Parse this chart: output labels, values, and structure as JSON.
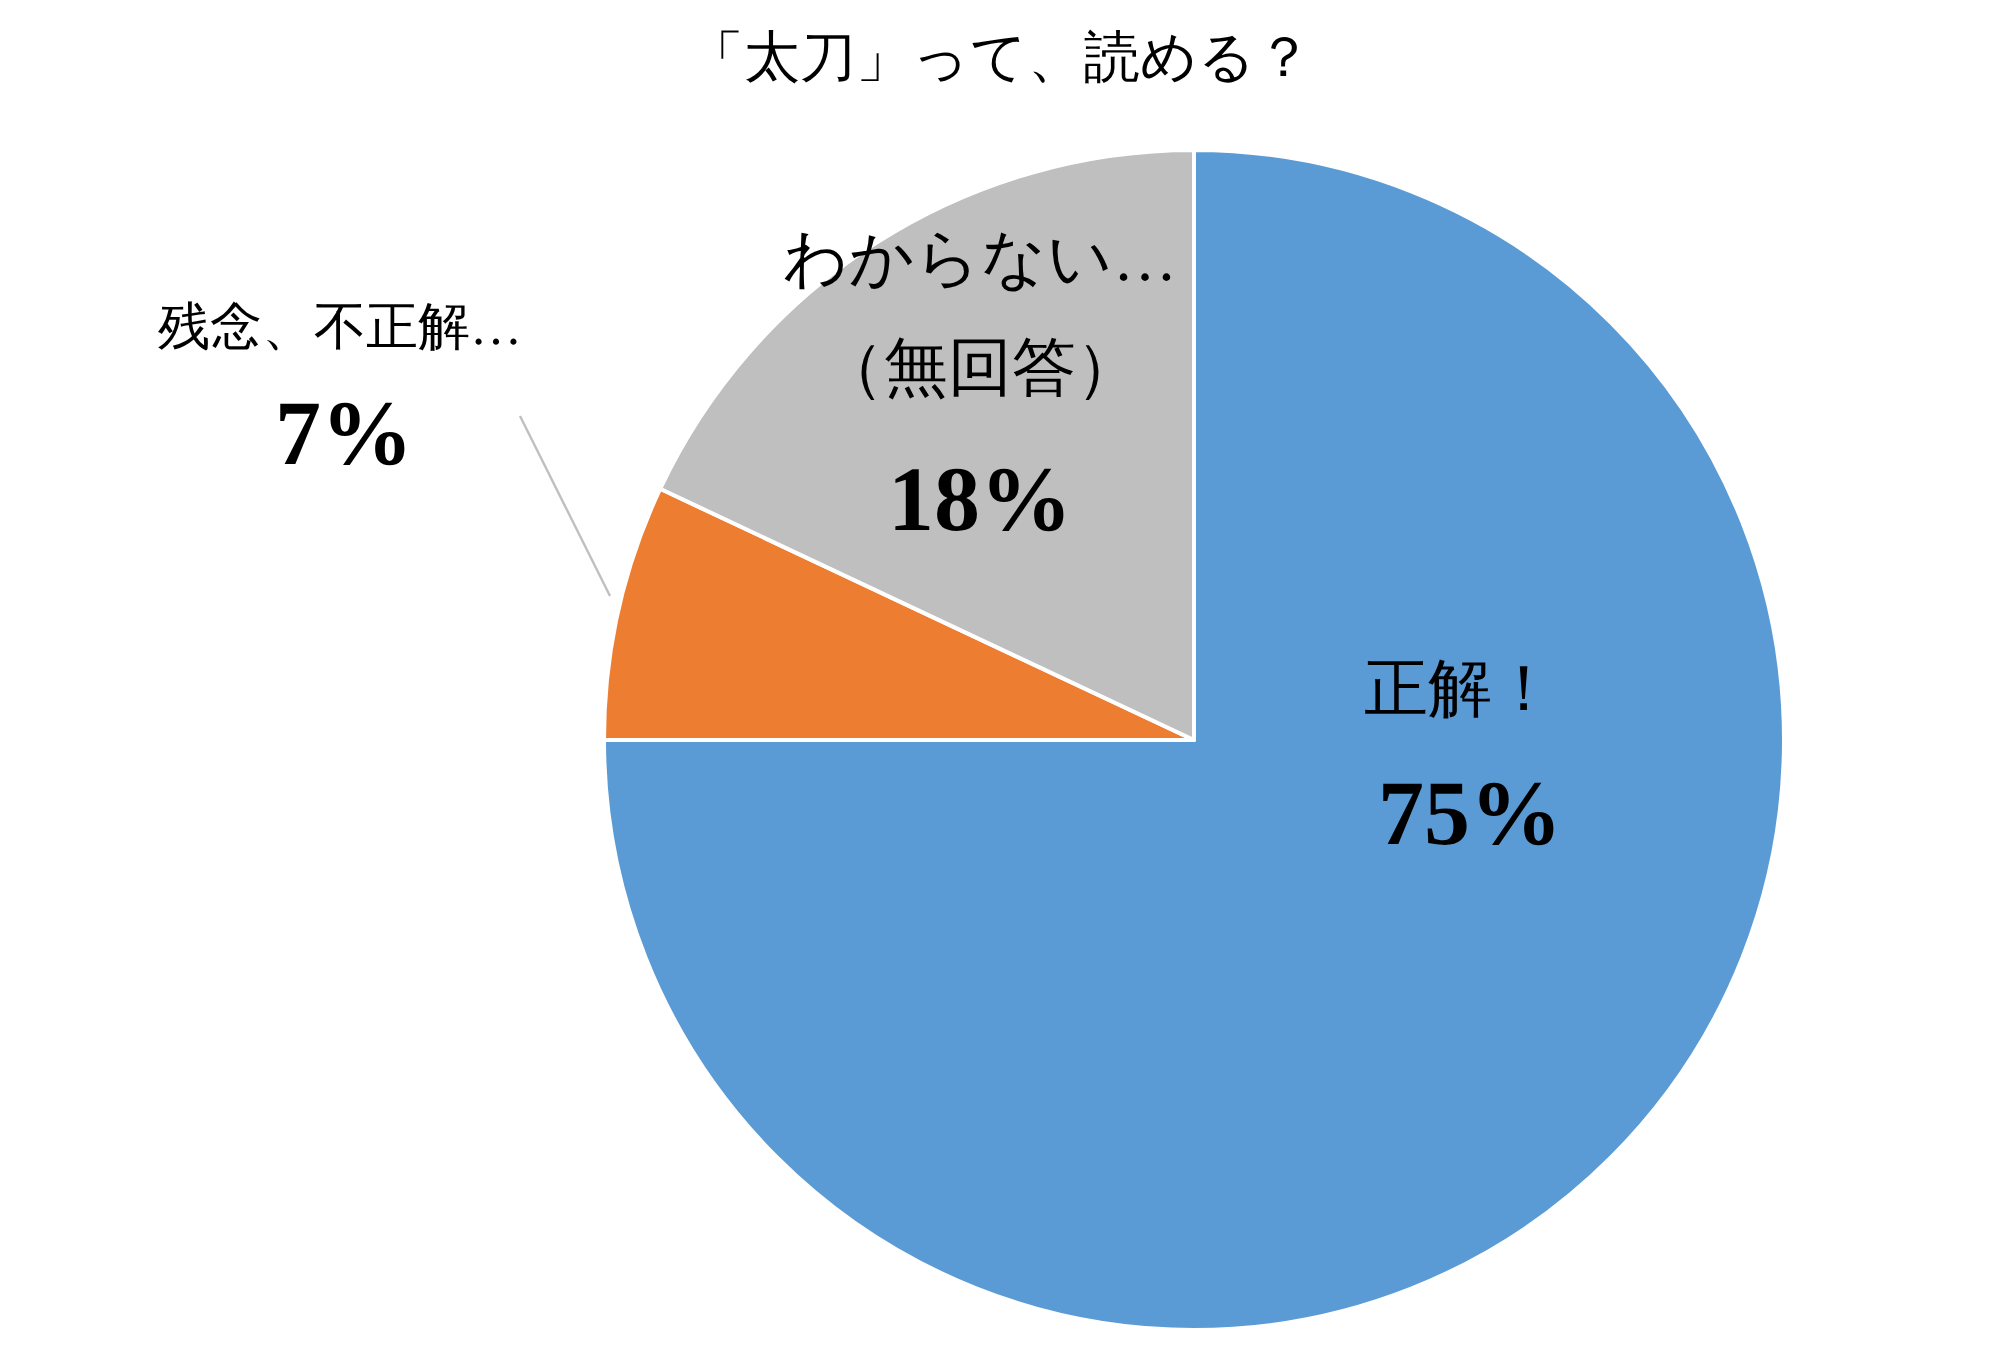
{
  "chart_data": {
    "type": "pie",
    "title": "「太刀」って、読める？",
    "categories": [
      "正解！",
      "残念、不正解…",
      "わからない…\n（無回答）"
    ],
    "values": [
      75,
      7,
      18
    ],
    "colors": [
      "#5b9bd5",
      "#ed7d31",
      "#bfbfbf"
    ],
    "value_labels": [
      "75%",
      "7%",
      "18%"
    ]
  }
}
